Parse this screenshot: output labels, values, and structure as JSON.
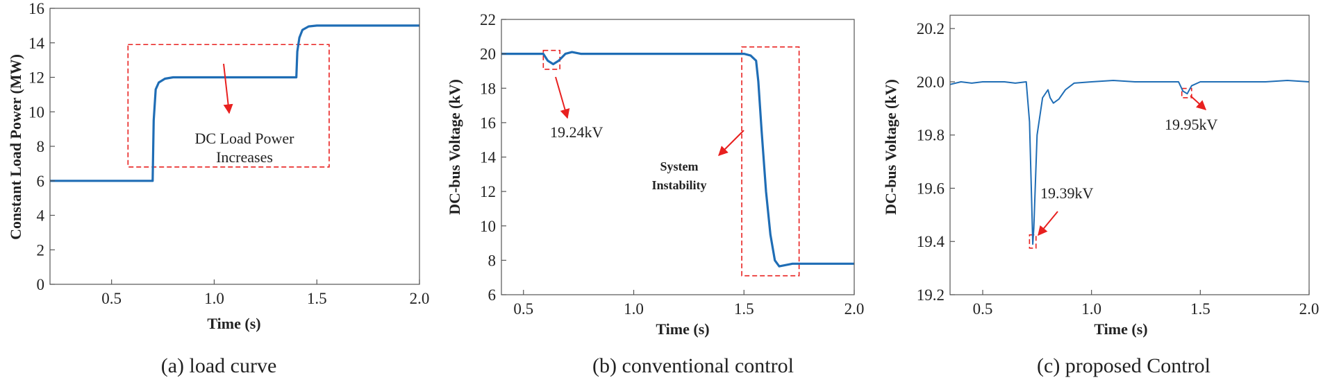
{
  "chart_data": [
    {
      "type": "line",
      "caption": "(a) load curve",
      "xlabel": "Time (s)",
      "ylabel": "Constant Load Power (MW)",
      "xlim": [
        0.2,
        2.0
      ],
      "ylim": [
        0,
        16
      ],
      "xticks": [
        "0.5",
        "1.0",
        "1.5",
        "2.0"
      ],
      "yticks": [
        "0",
        "2",
        "4",
        "6",
        "8",
        "10",
        "12",
        "14",
        "16"
      ],
      "series": [
        {
          "name": "load power",
          "color": "#1f6db5",
          "x": [
            0.2,
            0.7,
            0.705,
            0.715,
            0.73,
            0.76,
            0.8,
            1.4,
            1.405,
            1.415,
            1.43,
            1.46,
            1.5,
            2.0
          ],
          "y": [
            6.0,
            6.0,
            9.5,
            11.3,
            11.7,
            11.92,
            12.0,
            12.0,
            13.5,
            14.3,
            14.75,
            14.95,
            15.0,
            15.0
          ]
        }
      ],
      "highlight": {
        "x": [
          0.58,
          1.56
        ],
        "y": [
          6.8,
          13.9
        ]
      },
      "annotations": [
        {
          "lines": [
            "DC Load Power",
            "Increases"
          ]
        }
      ]
    },
    {
      "type": "line",
      "caption": "(b) conventional control",
      "xlabel": "Time (s)",
      "ylabel": "DC-bus Voltage (kV)",
      "xlim": [
        0.4,
        2.0
      ],
      "ylim": [
        6,
        22
      ],
      "xticks": [
        "0.5",
        "1.0",
        "1.5",
        "2.0"
      ],
      "yticks": [
        "6",
        "8",
        "10",
        "12",
        "14",
        "16",
        "18",
        "20",
        "22"
      ],
      "series": [
        {
          "name": "DC-bus voltage",
          "color": "#1f6db5",
          "x": [
            0.4,
            0.59,
            0.61,
            0.635,
            0.66,
            0.69,
            0.72,
            0.76,
            1.5,
            1.53,
            1.555,
            1.565,
            1.58,
            1.6,
            1.62,
            1.64,
            1.66,
            1.68,
            1.72,
            2.0
          ],
          "y": [
            20.0,
            20.0,
            19.6,
            19.4,
            19.6,
            20.0,
            20.1,
            20.0,
            20.0,
            19.9,
            19.6,
            18.4,
            15.5,
            12.0,
            9.5,
            8.0,
            7.65,
            7.7,
            7.8,
            7.8
          ]
        }
      ],
      "highlights": [
        {
          "x": [
            0.59,
            0.665
          ],
          "y": [
            19.1,
            20.2
          ]
        },
        {
          "x": [
            1.49,
            1.75
          ],
          "y": [
            7.1,
            20.4
          ]
        }
      ],
      "annotations": [
        {
          "text": "19.24kV"
        },
        {
          "lines": [
            "System",
            "Instability"
          ]
        }
      ]
    },
    {
      "type": "line",
      "caption": "(c) proposed Control",
      "xlabel": "Time (s)",
      "ylabel": "DC-bus Voltage (kV)",
      "xlim": [
        0.35,
        2.0
      ],
      "ylim": [
        19.2,
        20.25
      ],
      "xticks": [
        "0.5",
        "1.0",
        "1.5",
        "2.0"
      ],
      "yticks": [
        "19.2",
        "19.4",
        "19.6",
        "19.8",
        "20.0",
        "20.2"
      ],
      "series": [
        {
          "name": "DC-bus voltage",
          "color": "#1f6db5",
          "x": [
            0.35,
            0.4,
            0.45,
            0.5,
            0.55,
            0.6,
            0.65,
            0.7,
            0.715,
            0.725,
            0.73,
            0.735,
            0.75,
            0.775,
            0.8,
            0.81,
            0.825,
            0.85,
            0.88,
            0.92,
            1.0,
            1.1,
            1.2,
            1.3,
            1.4,
            1.42,
            1.44,
            1.46,
            1.5,
            1.6,
            1.7,
            1.8,
            1.9,
            2.0
          ],
          "y": [
            19.99,
            20.0,
            19.995,
            20.0,
            20.0,
            20.0,
            19.995,
            20.0,
            19.85,
            19.55,
            19.39,
            19.45,
            19.8,
            19.94,
            19.97,
            19.94,
            19.92,
            19.935,
            19.97,
            19.995,
            20.0,
            20.005,
            20.0,
            20.0,
            20.0,
            19.965,
            19.955,
            19.985,
            20.0,
            20.0,
            20.0,
            20.0,
            20.005,
            20.0
          ]
        }
      ],
      "highlights": [
        {
          "x": [
            0.715,
            0.745
          ],
          "y": [
            19.375,
            19.425
          ]
        },
        {
          "x": [
            1.415,
            1.46
          ],
          "y": [
            19.94,
            19.975
          ]
        }
      ],
      "annotations": [
        {
          "text": "19.39kV"
        },
        {
          "text": "19.95kV"
        }
      ]
    }
  ]
}
